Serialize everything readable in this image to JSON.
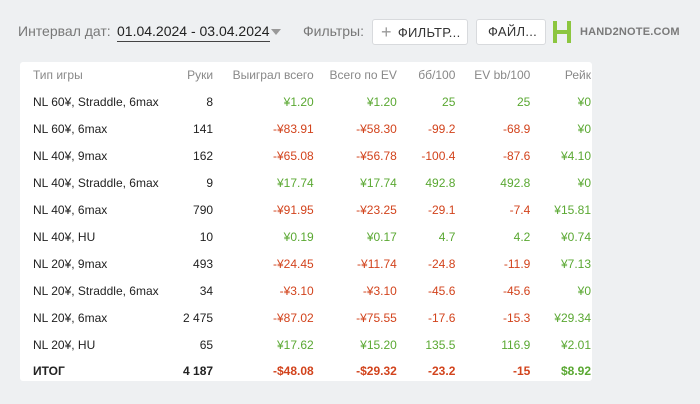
{
  "toolbar": {
    "date_label": "Интервал дат:",
    "date_range": "01.04.2024 - 03.04.2024",
    "filters_label": "Фильтры:",
    "filter_button": "ФИЛЬТР...",
    "file_button": "ФАЙЛ...",
    "logo_text": "HAND2NOTE.COM"
  },
  "colors": {
    "positive": "#5aa832",
    "negative": "#d2431c",
    "brand": "#8cc63f"
  },
  "table": {
    "headers": [
      "Тип игры",
      "Руки",
      "Выиграл всего",
      "Всего по EV",
      "бб/100",
      "EV bb/100",
      "Рейк"
    ],
    "rows": [
      {
        "game": "NL 60¥, Straddle, 6max",
        "hands": "8",
        "won": "¥1.20",
        "ev": "¥1.20",
        "bb100": "25",
        "evbb100": "25",
        "rake": "¥0"
      },
      {
        "game": "NL 60¥, 6max",
        "hands": "141",
        "won": "-¥83.91",
        "ev": "-¥58.30",
        "bb100": "-99.2",
        "evbb100": "-68.9",
        "rake": "¥0"
      },
      {
        "game": "NL 40¥, 9max",
        "hands": "162",
        "won": "-¥65.08",
        "ev": "-¥56.78",
        "bb100": "-100.4",
        "evbb100": "-87.6",
        "rake": "¥4.10"
      },
      {
        "game": "NL 40¥, Straddle, 6max",
        "hands": "9",
        "won": "¥17.74",
        "ev": "¥17.74",
        "bb100": "492.8",
        "evbb100": "492.8",
        "rake": "¥0"
      },
      {
        "game": "NL 40¥, 6max",
        "hands": "790",
        "won": "-¥91.95",
        "ev": "-¥23.25",
        "bb100": "-29.1",
        "evbb100": "-7.4",
        "rake": "¥15.81"
      },
      {
        "game": "NL 40¥, HU",
        "hands": "10",
        "won": "¥0.19",
        "ev": "¥0.17",
        "bb100": "4.7",
        "evbb100": "4.2",
        "rake": "¥0.74"
      },
      {
        "game": "NL 20¥, 9max",
        "hands": "493",
        "won": "-¥24.45",
        "ev": "-¥11.74",
        "bb100": "-24.8",
        "evbb100": "-11.9",
        "rake": "¥7.13"
      },
      {
        "game": "NL 20¥, Straddle, 6max",
        "hands": "34",
        "won": "-¥3.10",
        "ev": "-¥3.10",
        "bb100": "-45.6",
        "evbb100": "-45.6",
        "rake": "¥0"
      },
      {
        "game": "NL 20¥, 6max",
        "hands": "2 475",
        "won": "-¥87.02",
        "ev": "-¥75.55",
        "bb100": "-17.6",
        "evbb100": "-15.3",
        "rake": "¥29.34"
      },
      {
        "game": "NL 20¥, HU",
        "hands": "65",
        "won": "¥17.62",
        "ev": "¥15.20",
        "bb100": "135.5",
        "evbb100": "116.9",
        "rake": "¥2.01"
      }
    ],
    "total": {
      "game": "ИТОГ",
      "hands": "4 187",
      "won": "-$48.08",
      "ev": "-$29.32",
      "bb100": "-23.2",
      "evbb100": "-15",
      "rake": "$8.92"
    }
  }
}
